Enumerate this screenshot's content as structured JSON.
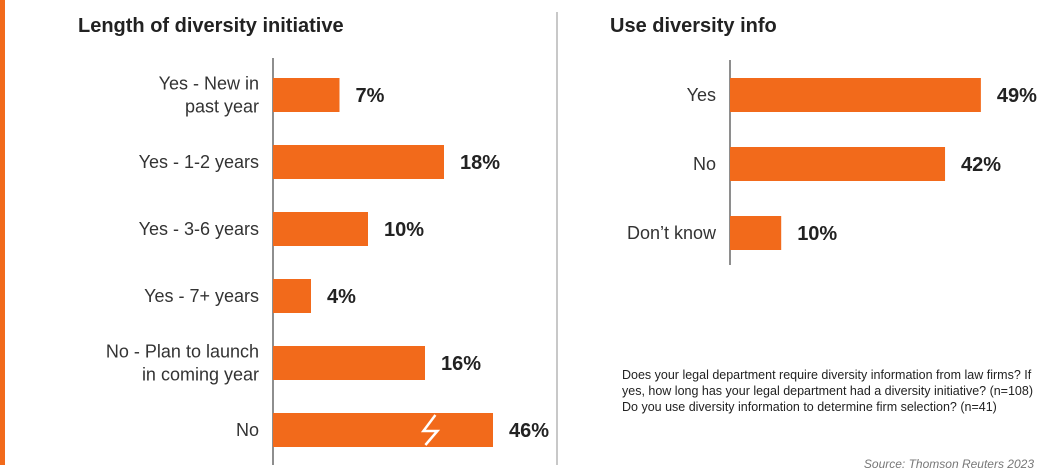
{
  "colors": {
    "bar": "#f26a1b",
    "accent": "#f26a1b"
  },
  "chart_data": [
    {
      "type": "bar",
      "orientation": "horizontal",
      "title": "Length of diversity initiative",
      "categories": [
        [
          "Yes - New in",
          "past year"
        ],
        [
          "Yes - 1-2 years"
        ],
        [
          "Yes - 3-6 years"
        ],
        [
          "Yes - 7+ years"
        ],
        [
          "No - Plan to launch",
          "in coming year"
        ],
        [
          "No"
        ]
      ],
      "values": [
        7,
        18,
        10,
        4,
        16,
        46
      ],
      "value_labels": [
        "7%",
        "18%",
        "10%",
        "4%",
        "16%",
        "46%"
      ],
      "unit": "%",
      "xlim": [
        0,
        10
      ],
      "broken_axis_on": "No",
      "grid": false
    },
    {
      "type": "bar",
      "orientation": "horizontal",
      "title": "Use diversity info",
      "categories": [
        [
          "Yes"
        ],
        [
          "No"
        ],
        [
          "Don’t know"
        ]
      ],
      "values": [
        49,
        42,
        10
      ],
      "value_labels": [
        "49%",
        "42%",
        "10%"
      ],
      "unit": "%",
      "xlim": [
        0,
        50
      ],
      "grid": false
    }
  ],
  "note": "Does your legal department require diversity information from law firms? If yes, how long has your legal department had a diversity initiative? (n=108) Do you use diversity information to determine firm selection? (n=41)",
  "source": "Source: Thomson Reuters 2023"
}
